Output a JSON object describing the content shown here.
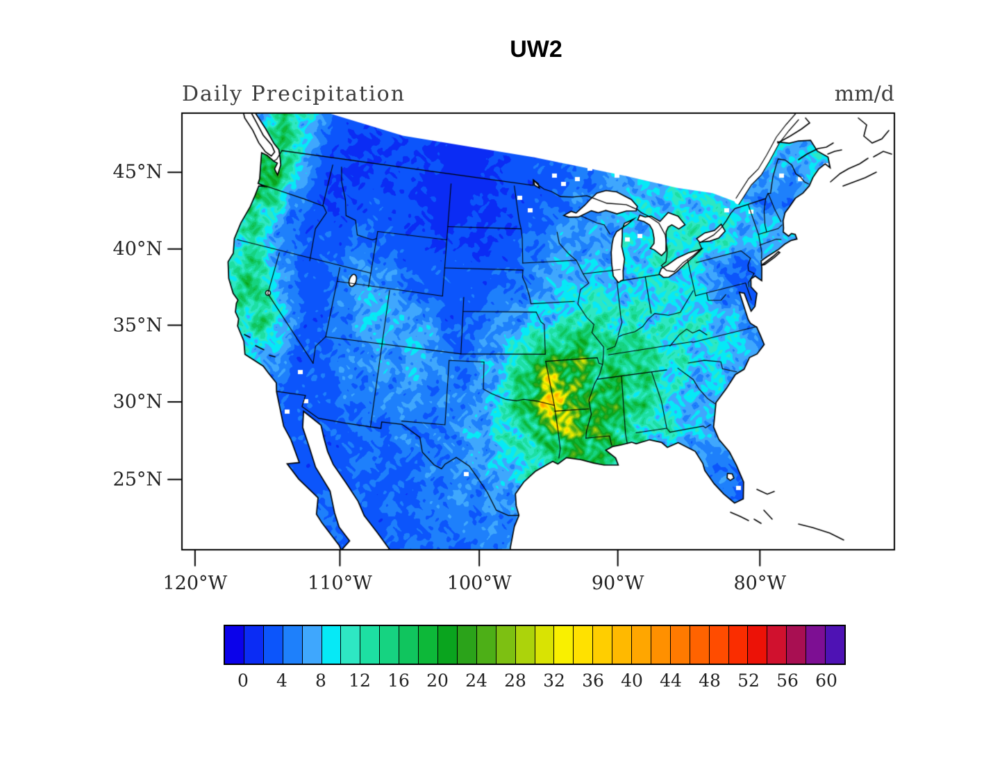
{
  "figure": {
    "title": "UW2",
    "field_label": "Daily Precipitation",
    "units_label": "mm/d"
  },
  "axes": {
    "x_ticks": [
      {
        "label": "120°W",
        "lon": -120
      },
      {
        "label": "110°W",
        "lon": -110
      },
      {
        "label": "100°W",
        "lon": -100
      },
      {
        "label": "90°W",
        "lon": -90
      },
      {
        "label": "80°W",
        "lon": -80
      }
    ],
    "y_ticks": [
      {
        "label": "45°N",
        "lat": 45
      },
      {
        "label": "40°N",
        "lat": 40
      },
      {
        "label": "35°N",
        "lat": 35
      },
      {
        "label": "30°N",
        "lat": 30
      },
      {
        "label": "25°N",
        "lat": 25
      }
    ]
  },
  "colorbar": {
    "bin_size": 2,
    "tick_values": [
      0,
      4,
      8,
      12,
      16,
      20,
      24,
      28,
      32,
      36,
      40,
      44,
      48,
      52,
      56,
      60
    ],
    "tick_labels": [
      "0",
      "4",
      "8",
      "12",
      "16",
      "20",
      "24",
      "28",
      "32",
      "36",
      "40",
      "44",
      "48",
      "52",
      "56",
      "60"
    ],
    "colors": [
      "#0b02ea",
      "#0b2cf4",
      "#0c55fb",
      "#1e80fb",
      "#3fa7fd",
      "#06e9f6",
      "#2ee7c3",
      "#1ddfa2",
      "#16d381",
      "#10c55e",
      "#0db839",
      "#0aa41e",
      "#2ba31a",
      "#4daf17",
      "#7dc012",
      "#acd30b",
      "#d9e303",
      "#f9f000",
      "#ffe100",
      "#ffce00",
      "#ffb900",
      "#ffa600",
      "#ff9000",
      "#ff7a00",
      "#ff6300",
      "#ff4c00",
      "#fa2d00",
      "#ec1207",
      "#d0112e",
      "#a80f52",
      "#7d0f93",
      "#4e12b4"
    ]
  },
  "chart_data": {
    "type": "heatmap",
    "title": "UW2",
    "variable": "Daily Precipitation",
    "units": "mm/d",
    "legend_position": "bottom",
    "levels_mm_per_day": [
      0,
      2,
      4,
      6,
      8,
      10,
      12,
      14,
      16,
      18,
      20,
      22,
      24,
      26,
      28,
      30,
      32,
      34,
      36,
      38,
      40,
      42,
      44,
      46,
      48,
      50,
      52,
      54,
      56,
      58,
      60
    ],
    "region": "Continental United States (Lambert-conic style map, ~23N-49N, ~126W-60W)",
    "grid": {
      "lons": [
        -126,
        -124,
        -122,
        -120,
        -118,
        -116,
        -114,
        -112,
        -110,
        -108,
        -106,
        -104,
        -102,
        -100,
        -98,
        -96,
        -94,
        -92,
        -90,
        -88,
        -86,
        -84,
        -82,
        -80,
        -78,
        -76,
        -74,
        -72,
        -70,
        -68,
        -66,
        -64,
        -62,
        -60
      ],
      "lats": [
        49,
        47,
        45,
        43,
        41,
        39,
        37,
        35,
        33,
        31,
        29,
        27,
        25,
        23
      ],
      "values_mm_per_day": [
        [
          8,
          16,
          12,
          6,
          3,
          2,
          2,
          2,
          2,
          2,
          2,
          1,
          1,
          2,
          2,
          3,
          3,
          4,
          5,
          5,
          6,
          7,
          8,
          8,
          7,
          6,
          6,
          7,
          8,
          8,
          9,
          9,
          9,
          9
        ],
        [
          10,
          20,
          15,
          6,
          3,
          2,
          3,
          3,
          3,
          2,
          2,
          1,
          2,
          2,
          2,
          3,
          4,
          5,
          5,
          6,
          7,
          8,
          8,
          9,
          8,
          7,
          7,
          8,
          9,
          8,
          8,
          9,
          9,
          9
        ],
        [
          8,
          18,
          11,
          5,
          3,
          3,
          3,
          4,
          4,
          3,
          2,
          2,
          2,
          2,
          3,
          4,
          5,
          6,
          6,
          7,
          8,
          8,
          9,
          10,
          9,
          8,
          7,
          5,
          4,
          6,
          8,
          9,
          9,
          9
        ],
        [
          6,
          14,
          10,
          6,
          4,
          3,
          4,
          5,
          5,
          4,
          3,
          3,
          3,
          3,
          4,
          5,
          6,
          7,
          7,
          8,
          9,
          9,
          10,
          10,
          10,
          9,
          8,
          7,
          6,
          7,
          8,
          8,
          8,
          8
        ],
        [
          5,
          10,
          13,
          8,
          4,
          3,
          4,
          6,
          7,
          5,
          4,
          3,
          3,
          3,
          5,
          6,
          8,
          8,
          9,
          9,
          10,
          10,
          9,
          8,
          6,
          4,
          5,
          6,
          7,
          7,
          8,
          8,
          8,
          8
        ],
        [
          4,
          8,
          15,
          11,
          5,
          3,
          4,
          6,
          7,
          6,
          8,
          4,
          3,
          4,
          6,
          8,
          10,
          11,
          11,
          11,
          11,
          10,
          9,
          8,
          6,
          4,
          4,
          5,
          6,
          6,
          7,
          7,
          7,
          7
        ],
        [
          3,
          6,
          12,
          14,
          8,
          3,
          4,
          5,
          7,
          6,
          7,
          5,
          4,
          6,
          8,
          12,
          16,
          22,
          16,
          13,
          12,
          11,
          10,
          9,
          8,
          6,
          5,
          4,
          4,
          4,
          4,
          4,
          4,
          4
        ],
        [
          3,
          4,
          8,
          11,
          7,
          3,
          3,
          5,
          6,
          6,
          6,
          5,
          5,
          7,
          10,
          18,
          32,
          24,
          18,
          15,
          13,
          11,
          9,
          9,
          7,
          5,
          4,
          3,
          3,
          3,
          3,
          3,
          3,
          3
        ],
        [
          2,
          3,
          5,
          7,
          5,
          3,
          3,
          4,
          5,
          5,
          5,
          5,
          6,
          7,
          11,
          20,
          40,
          26,
          20,
          16,
          13,
          10,
          8,
          7,
          5,
          4,
          3,
          3,
          3,
          3,
          3,
          3,
          3,
          3
        ],
        [
          2,
          2,
          3,
          5,
          4,
          3,
          3,
          4,
          4,
          4,
          5,
          5,
          6,
          7,
          10,
          14,
          20,
          22,
          18,
          14,
          11,
          9,
          7,
          6,
          5,
          4,
          3,
          3,
          3,
          3,
          3,
          3,
          3,
          3
        ],
        [
          2,
          2,
          3,
          4,
          4,
          4,
          3,
          3,
          4,
          4,
          4,
          5,
          5,
          6,
          8,
          11,
          14,
          16,
          15,
          12,
          9,
          7,
          5,
          5,
          5,
          4,
          3,
          3,
          3,
          3,
          3,
          3,
          3,
          3
        ],
        [
          2,
          2,
          2,
          3,
          4,
          5,
          4,
          3,
          3,
          4,
          4,
          4,
          5,
          5,
          7,
          8,
          9,
          8,
          8,
          8,
          7,
          6,
          5,
          4,
          4,
          4,
          3,
          3,
          3,
          3,
          3,
          3,
          3,
          3
        ],
        [
          2,
          2,
          2,
          3,
          4,
          5,
          5,
          4,
          3,
          3,
          4,
          4,
          4,
          5,
          5,
          6,
          6,
          5,
          5,
          5,
          6,
          6,
          5,
          4,
          4,
          3,
          3,
          3,
          3,
          3,
          3,
          3,
          3,
          3
        ],
        [
          2,
          2,
          2,
          2,
          3,
          5,
          5,
          4,
          3,
          3,
          3,
          4,
          4,
          4,
          5,
          5,
          4,
          4,
          4,
          4,
          5,
          5,
          5,
          4,
          4,
          3,
          3,
          3,
          3,
          3,
          3,
          3,
          3,
          3
        ]
      ]
    }
  }
}
